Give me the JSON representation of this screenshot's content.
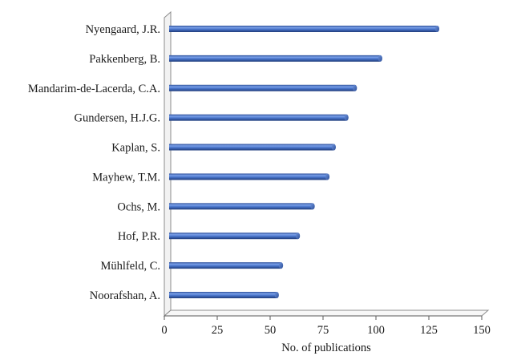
{
  "chart_data": {
    "type": "bar",
    "orientation": "horizontal",
    "categories": [
      "Nyengaard, J.R.",
      "Pakkenberg, B.",
      "Mandarim-de-Lacerda, C.A.",
      "Gundersen, H.J.G.",
      "Kaplan, S.",
      "Mayhew, T.M.",
      "Ochs, M.",
      "Hof, P.R.",
      "Mühlfeld, C.",
      "Noorafshan, A."
    ],
    "values": [
      127,
      100,
      88,
      84,
      78,
      75,
      68,
      61,
      53,
      51
    ],
    "xlabel": "No. of publications",
    "ylabel": "",
    "xlim": [
      0,
      150
    ],
    "xticks": [
      "0",
      "25",
      "50",
      "75",
      "100",
      "125",
      "150"
    ],
    "grid": false,
    "legend": "none",
    "bar_color": "#4472c4",
    "style": "3d-cylinder"
  }
}
